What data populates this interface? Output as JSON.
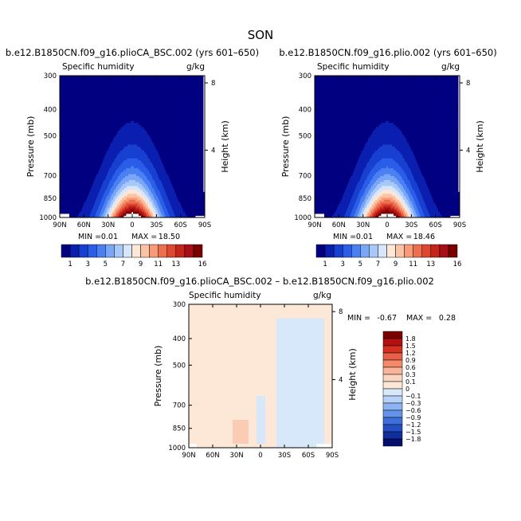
{
  "figure_title": "SON",
  "chart_data": [
    {
      "type": "contour",
      "title": "b.e12.B1850CN.f09_g16.plioCA_BSC.002 (yrs 601–650)",
      "field_label": "Specific humidity",
      "units": "g/kg",
      "xlabel": "",
      "ylabel": "Pressure (mb)",
      "y2label": "Height (km)",
      "x_ticks": [
        "90N",
        "60N",
        "30N",
        "0",
        "30S",
        "60S",
        "90S"
      ],
      "x_values": [
        90,
        60,
        30,
        0,
        -30,
        -60,
        -90
      ],
      "y_ticks": [
        "300",
        "400",
        "500",
        "700",
        "850",
        "1000"
      ],
      "y_values": [
        300,
        400,
        500,
        700,
        850,
        1000
      ],
      "height_ticks": [
        "8",
        "4"
      ],
      "height_values": [
        8,
        4
      ],
      "min_label": "MIN =",
      "min_value": "0.01",
      "max_label": "MAX =",
      "max_value": "18.50",
      "min": 0.01,
      "max": 18.5,
      "levels": [
        1,
        2,
        3,
        4,
        5,
        6,
        7,
        8,
        9,
        10,
        11,
        12,
        13,
        14,
        15,
        16
      ],
      "colorbar_labels": [
        "1",
        "3",
        "5",
        "7",
        "9",
        "11",
        "13",
        "16"
      ]
    },
    {
      "type": "contour",
      "title": "b.e12.B1850CN.f09_g16.plio.002 (yrs 601–650)",
      "field_label": "Specific humidity",
      "units": "g/kg",
      "xlabel": "",
      "ylabel": "Pressure (mb)",
      "y2label": "Height (km)",
      "x_ticks": [
        "90N",
        "60N",
        "30N",
        "0",
        "30S",
        "60S",
        "90S"
      ],
      "x_values": [
        90,
        60,
        30,
        0,
        -30,
        -60,
        -90
      ],
      "y_ticks": [
        "300",
        "400",
        "500",
        "700",
        "850",
        "1000"
      ],
      "y_values": [
        300,
        400,
        500,
        700,
        850,
        1000
      ],
      "height_ticks": [
        "8",
        "4"
      ],
      "height_values": [
        8,
        4
      ],
      "min_label": "MIN =",
      "min_value": "0.01",
      "max_label": "MAX =",
      "max_value": "18.46",
      "min": 0.01,
      "max": 18.46,
      "levels": [
        1,
        2,
        3,
        4,
        5,
        6,
        7,
        8,
        9,
        10,
        11,
        12,
        13,
        14,
        15,
        16
      ],
      "colorbar_labels": [
        "1",
        "3",
        "5",
        "7",
        "9",
        "11",
        "13",
        "16"
      ]
    },
    {
      "type": "contour",
      "title": "b.e12.B1850CN.f09_g16.plioCA_BSC.002 – b.e12.B1850CN.f09_g16.plio.002",
      "field_label": "Specific humidity",
      "units": "g/kg",
      "xlabel": "",
      "ylabel": "Pressure (mb)",
      "y2label": "Height (km)",
      "x_ticks": [
        "90N",
        "60N",
        "30N",
        "0",
        "30S",
        "60S",
        "90S"
      ],
      "x_values": [
        90,
        60,
        30,
        0,
        -30,
        -60,
        -90
      ],
      "y_ticks": [
        "300",
        "400",
        "500",
        "700",
        "850",
        "1000"
      ],
      "y_values": [
        300,
        400,
        500,
        700,
        850,
        1000
      ],
      "height_ticks": [
        "8",
        "4"
      ],
      "height_values": [
        8,
        4
      ],
      "min_label": "MIN =",
      "min_value": "-0.67",
      "max_label": "MAX =",
      "max_value": "0.28",
      "min": -0.67,
      "max": 0.28,
      "levels": [
        -1.8,
        -1.5,
        -1.2,
        -0.9,
        -0.6,
        -0.3,
        -0.1,
        0,
        0.1,
        0.3,
        0.6,
        0.9,
        1.2,
        1.5,
        1.8
      ],
      "colorbar_labels": [
        "1.8",
        "1.5",
        "1.2",
        "0.9",
        "0.6",
        "0.3",
        "0.1",
        "0",
        "−0.1",
        "−0.3",
        "−0.6",
        "−0.9",
        "−1.2",
        "−1.5",
        "−1.8"
      ]
    }
  ],
  "colors": {
    "abs_fills": [
      "#000080",
      "#0a1fb0",
      "#1840d0",
      "#2a5ee8",
      "#4a80f2",
      "#7aa6f7",
      "#a9c8fa",
      "#d6e6fc",
      "#fde7d6",
      "#fcc2a4",
      "#f79a78",
      "#ee6f50",
      "#dd4732",
      "#c72419",
      "#a50f15",
      "#7a0000"
    ],
    "diff_fills": [
      "#7a0000",
      "#b51010",
      "#d43020",
      "#e86048",
      "#f48a6a",
      "#f9b49a",
      "#fcd5c0",
      "#fde8d8",
      "#d8e8fb",
      "#b6d2f8",
      "#8db4f2",
      "#6394ea",
      "#3e70dc",
      "#2450c4",
      "#102e9c",
      "#040e6c"
    ],
    "diff_pos_fill": "#fde8d8",
    "diff_neg_fill": "#d8e8fb",
    "diff_pos_strong": "#fbccb4"
  }
}
